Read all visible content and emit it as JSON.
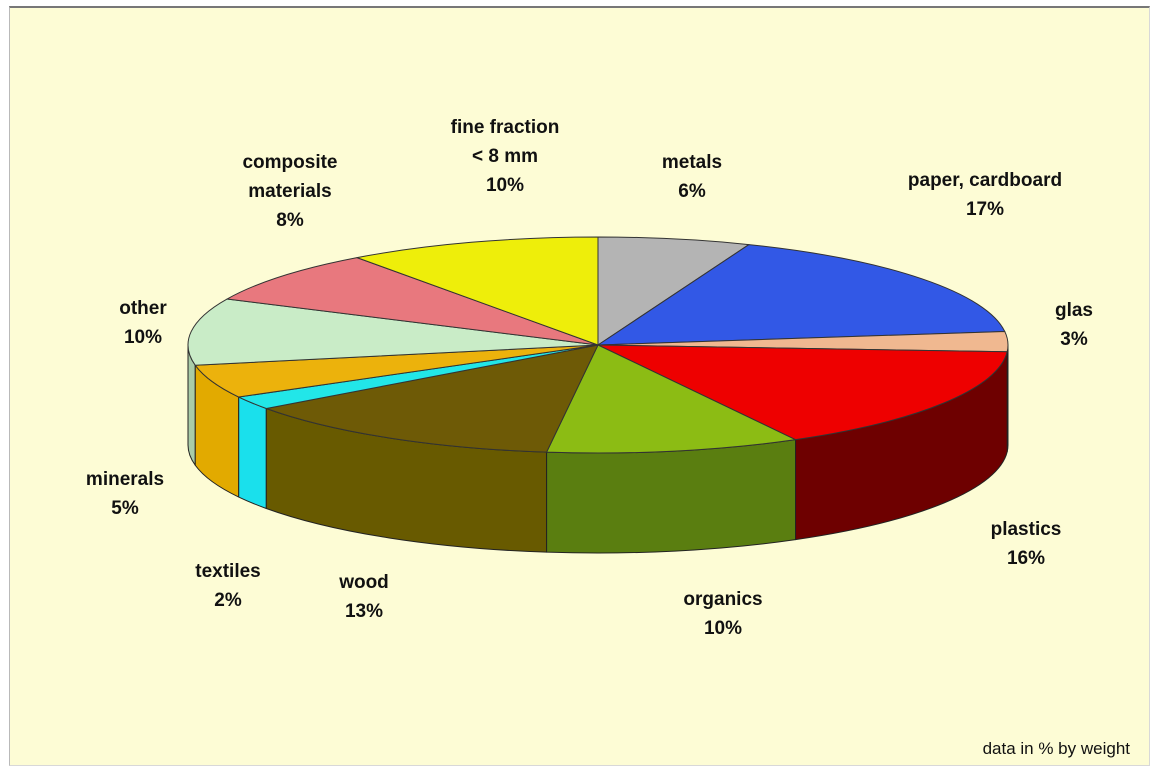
{
  "chart_data": {
    "type": "pie",
    "note": "data in % by weight",
    "slices": [
      {
        "lines": [
          "metals",
          "6%"
        ],
        "value": 6,
        "color": "#b4b4b4",
        "side": "#7a7a7a"
      },
      {
        "lines": [
          "paper, cardboard",
          "17%"
        ],
        "value": 17,
        "color": "#3258e6",
        "side": "#1f3a9e"
      },
      {
        "lines": [
          "glas",
          "3%"
        ],
        "value": 3,
        "color": "#f0b890",
        "side": "#b88a66"
      },
      {
        "lines": [
          "plastics",
          "16%"
        ],
        "value": 16,
        "color": "#ee0000",
        "side": "#6e0000"
      },
      {
        "lines": [
          "organics",
          "10%"
        ],
        "value": 10,
        "color": "#8cbc14",
        "side": "#5a7e10"
      },
      {
        "lines": [
          "wood",
          "13%"
        ],
        "value": 13,
        "color": "#6e5a06",
        "side": "#685a00"
      },
      {
        "lines": [
          "textiles",
          "2%"
        ],
        "value": 2,
        "color": "#22e6e8",
        "side": "#1ae0ec"
      },
      {
        "lines": [
          "minerals",
          "5%"
        ],
        "value": 5,
        "color": "#ecb20c",
        "side": "#e2aa00"
      },
      {
        "lines": [
          "other",
          "10%"
        ],
        "value": 10,
        "color": "#c9ecc7",
        "side": "#a9cca7"
      },
      {
        "lines": [
          "composite",
          "materials",
          "8%"
        ],
        "value": 8,
        "color": "#e8787e",
        "side": "#a85458"
      },
      {
        "lines": [
          "fine fraction",
          "< 8 mm",
          "10%"
        ],
        "value": 10,
        "color": "#eeee0a",
        "side": "#b0b000"
      }
    ]
  }
}
